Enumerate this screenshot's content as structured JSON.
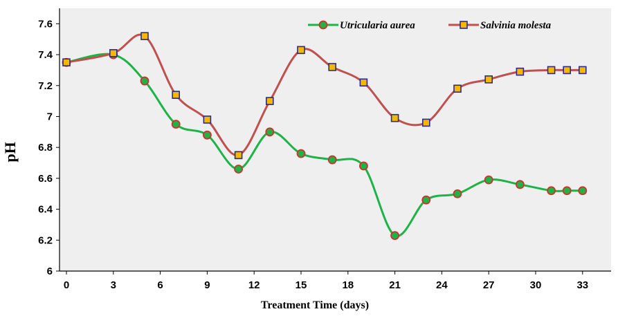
{
  "chart_data": {
    "type": "line",
    "xlabel": "Treatment Time (days)",
    "ylabel": "pH",
    "xlim": [
      0,
      34
    ],
    "ylim": [
      6,
      7.7
    ],
    "x_ticks": [
      0,
      3,
      6,
      9,
      12,
      15,
      18,
      21,
      24,
      27,
      30,
      33
    ],
    "x_tick_labels": [
      "0",
      "3",
      "6",
      "9",
      "12",
      "15",
      "18",
      "21",
      "24",
      "27",
      "30",
      "33"
    ],
    "y_ticks": [
      6,
      6.2,
      6.4,
      6.6,
      6.8,
      7,
      7.2,
      7.4,
      7.6
    ],
    "y_tick_labels": [
      "6",
      "6.2",
      "6.4",
      "6.6",
      "6.8",
      "7",
      "7.2",
      "7.4",
      "7.6"
    ],
    "grid": false,
    "legend_position": "top-right",
    "series": [
      {
        "name": "Utricularia aurea",
        "color": "#1db345",
        "marker": "circle",
        "marker_fill": "#1db345",
        "marker_edge": "#d32f2f",
        "x": [
          0,
          3,
          5,
          7,
          9,
          11,
          13,
          15,
          17,
          19,
          21,
          23,
          25,
          27,
          29,
          31,
          32,
          33
        ],
        "y": [
          7.35,
          7.4,
          7.23,
          6.95,
          6.88,
          6.66,
          6.9,
          6.76,
          6.72,
          6.68,
          6.23,
          6.46,
          6.5,
          6.59,
          6.56,
          6.52,
          6.52,
          6.52
        ]
      },
      {
        "name": "Salvinia molesta",
        "color": "#c0504d",
        "marker": "square",
        "marker_fill": "#f5b800",
        "marker_edge": "#2a2a8a",
        "x": [
          0,
          3,
          5,
          7,
          9,
          11,
          13,
          15,
          17,
          19,
          21,
          23,
          25,
          27,
          29,
          31,
          32,
          33
        ],
        "y": [
          7.35,
          7.41,
          7.52,
          7.14,
          6.98,
          6.75,
          7.1,
          7.43,
          7.32,
          7.22,
          6.99,
          6.96,
          7.18,
          7.24,
          7.29,
          7.3,
          7.3,
          7.3
        ]
      }
    ]
  }
}
